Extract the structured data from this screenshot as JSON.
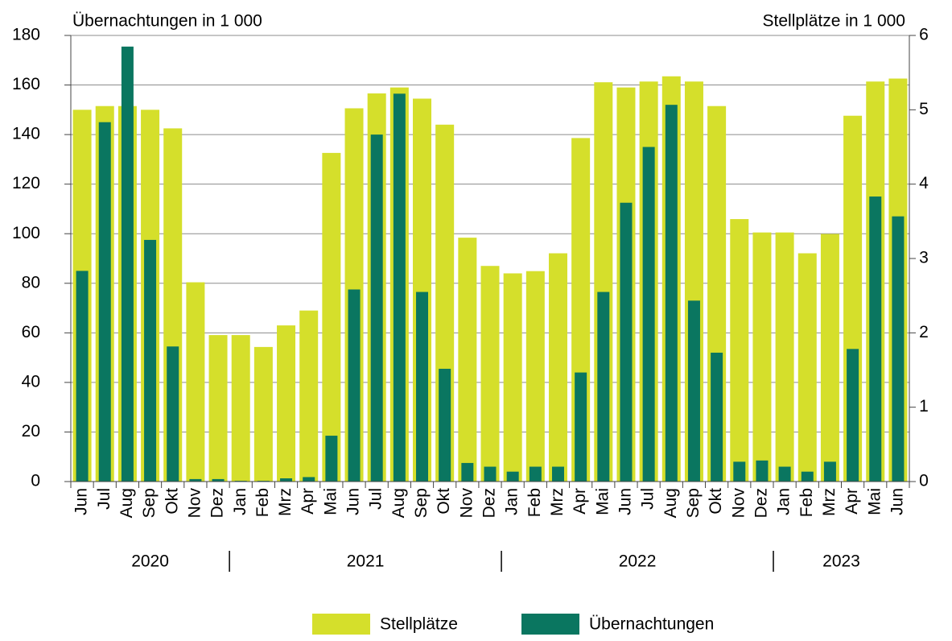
{
  "chart_data": {
    "type": "bar",
    "y_label": "Übernachtungen in 1 000",
    "y2_label": "Stellplätze in 1 000",
    "categories": [
      "Jun",
      "Jul",
      "Aug",
      "Sep",
      "Okt",
      "Nov",
      "Dez",
      "Jan",
      "Feb",
      "Mrz",
      "Apr",
      "Mai",
      "Jun",
      "Jul",
      "Aug",
      "Sep",
      "Okt",
      "Nov",
      "Dez",
      "Jan",
      "Feb",
      "Mrz",
      "Apr",
      "Mai",
      "Jun",
      "Jul",
      "Aug",
      "Sep",
      "Okt",
      "Nov",
      "Dez",
      "Jan",
      "Feb",
      "Mrz",
      "Apr",
      "Mai",
      "Jun"
    ],
    "years": [
      "2020",
      "2021",
      "2022",
      "2023"
    ],
    "series": [
      {
        "name": "Stellplätze",
        "color": "#d5df2b",
        "axis": "y2",
        "values": [
          5.0,
          5.05,
          5.05,
          5.0,
          4.75,
          2.68,
          1.97,
          1.97,
          1.81,
          2.1,
          2.3,
          4.42,
          5.02,
          5.22,
          5.3,
          5.15,
          4.8,
          3.28,
          2.9,
          2.8,
          2.83,
          3.07,
          4.62,
          5.37,
          5.3,
          5.38,
          5.45,
          5.38,
          5.05,
          3.53,
          3.35,
          3.35,
          3.07,
          3.33,
          4.92,
          5.38,
          5.42
        ]
      },
      {
        "name": "Übernachtungen",
        "color": "#0a7660",
        "values": [
          85,
          145,
          175.5,
          97.5,
          54.5,
          1,
          1,
          0.3,
          0.3,
          1.3,
          1.8,
          18.5,
          77.5,
          140,
          156.5,
          76.5,
          45.5,
          7.5,
          6,
          4,
          6,
          6,
          44,
          76.5,
          112.5,
          135,
          152,
          73,
          52,
          8,
          8.5,
          6,
          4,
          8,
          53.5,
          115,
          107
        ]
      }
    ],
    "ylim": [
      0,
      180
    ],
    "yticks": [
      0,
      20,
      40,
      60,
      80,
      100,
      120,
      140,
      160,
      180
    ],
    "y2lim": [
      0,
      6
    ],
    "y2ticks": [
      0,
      1,
      2,
      3,
      4,
      5,
      6
    ],
    "grid": true
  }
}
